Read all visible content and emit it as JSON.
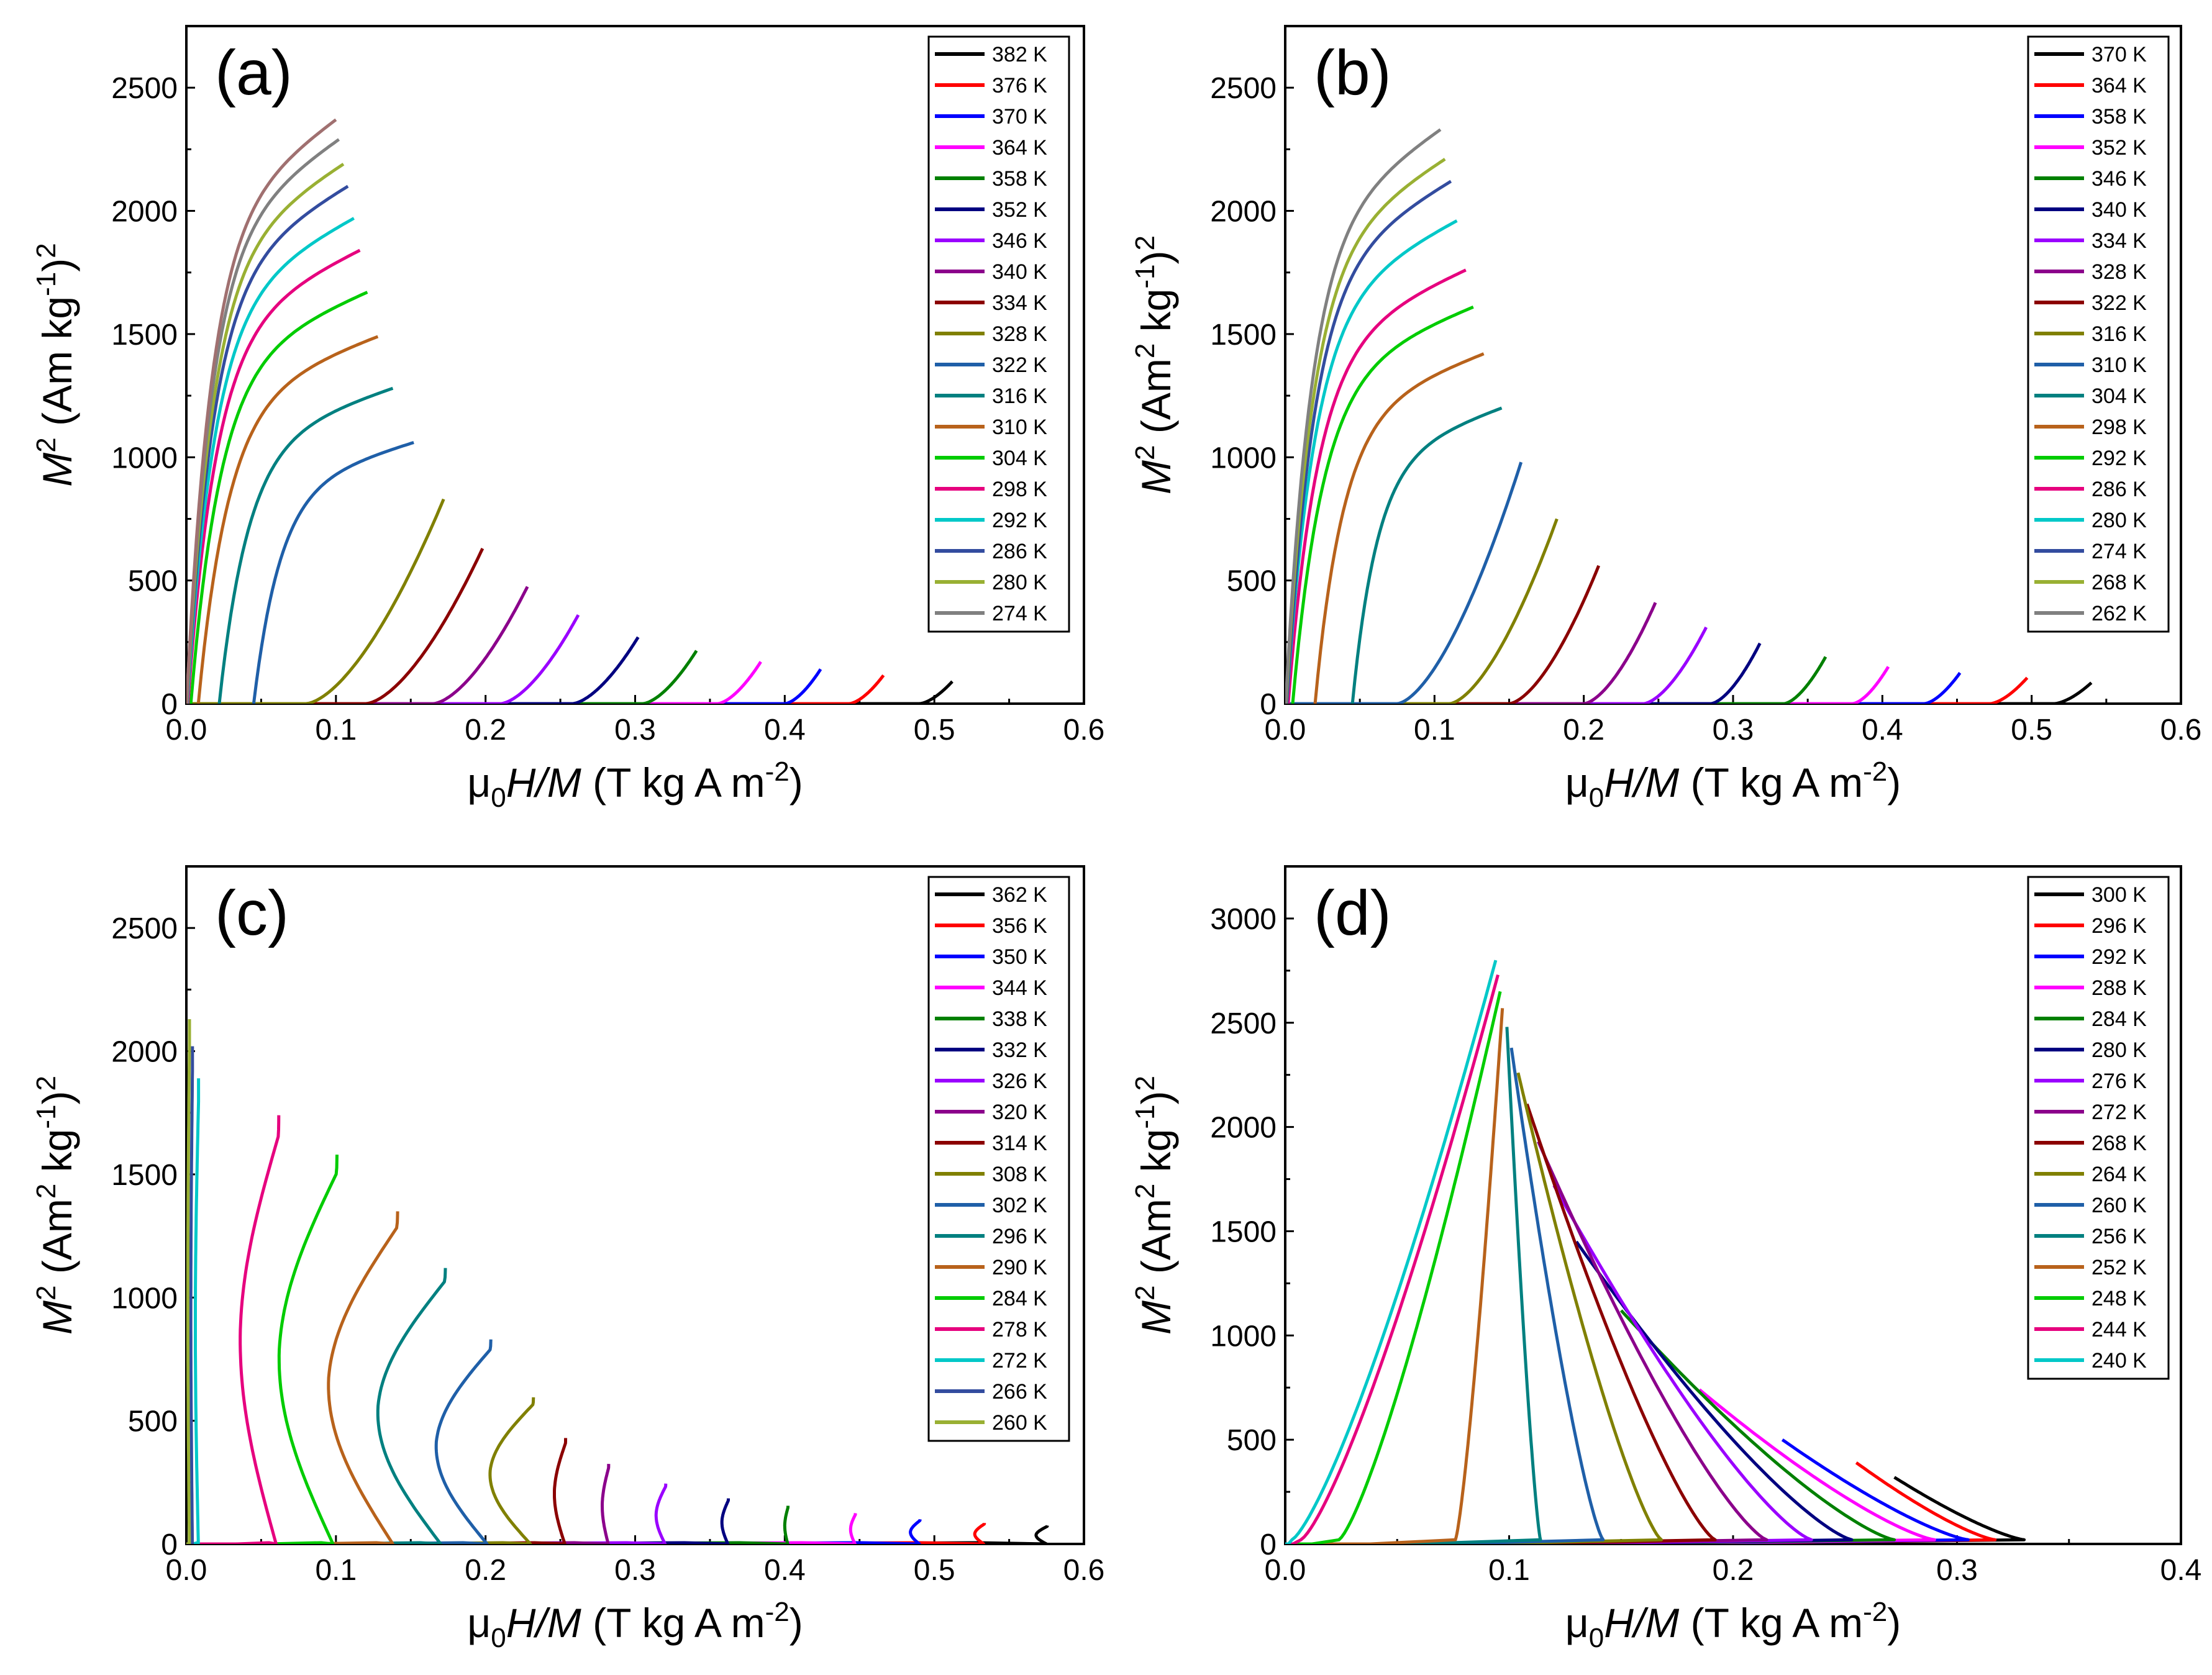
{
  "figure": {
    "colors": [
      "#000000",
      "#ff0000",
      "#0000ff",
      "#ff00ff",
      "#008000",
      "#000080",
      "#9a00ff",
      "#8b008b",
      "#8b0000",
      "#808000",
      "#1f5fa8",
      "#008080",
      "#b8621b",
      "#00cc00",
      "#e6007e",
      "#00c8c8",
      "#334c9f",
      "#99b033",
      "#808080"
    ]
  },
  "chart_data": [
    {
      "panel": "(a)",
      "type": "line",
      "xlabel": "μ₀H/M (T kg A m⁻²)",
      "ylabel": "M² (Am kg⁻¹)²",
      "xlim": [
        0,
        0.6
      ],
      "ylim": [
        0,
        2750
      ],
      "xticks": [
        "0.0",
        "0.1",
        "0.2",
        "0.3",
        "0.4",
        "0.5",
        "0.6"
      ],
      "yticks": [
        "0",
        "500",
        "1000",
        "1500",
        "2000",
        "2500"
      ],
      "series": [
        {
          "name": "382 K",
          "x0": 0.49,
          "x1": 0.512,
          "ytop": 90
        },
        {
          "name": "376 K",
          "x0": 0.443,
          "x1": 0.466,
          "ytop": 115
        },
        {
          "name": "370 K",
          "x0": 0.4,
          "x1": 0.424,
          "ytop": 140
        },
        {
          "name": "364 K",
          "x0": 0.355,
          "x1": 0.384,
          "ytop": 170
        },
        {
          "name": "358 K",
          "x0": 0.305,
          "x1": 0.341,
          "ytop": 215
        },
        {
          "name": "352 K",
          "x0": 0.258,
          "x1": 0.302,
          "ytop": 270
        },
        {
          "name": "346 K",
          "x0": 0.21,
          "x1": 0.262,
          "ytop": 360
        },
        {
          "name": "340 K",
          "x0": 0.165,
          "x1": 0.228,
          "ytop": 475
        },
        {
          "name": "334 K",
          "x0": 0.12,
          "x1": 0.198,
          "ytop": 630
        },
        {
          "name": "328 K",
          "x0": 0.08,
          "x1": 0.172,
          "ytop": 830
        },
        {
          "name": "322 K",
          "x0": 0.045,
          "x1": 0.152,
          "ytop": 1060
        },
        {
          "name": "316 K",
          "x0": 0.022,
          "x1": 0.138,
          "ytop": 1280
        },
        {
          "name": "310 K",
          "x0": 0.008,
          "x1": 0.128,
          "ytop": 1490
        },
        {
          "name": "304 K",
          "x0": 0.003,
          "x1": 0.121,
          "ytop": 1670
        },
        {
          "name": "298 K",
          "x0": 0.001,
          "x1": 0.116,
          "ytop": 1840
        },
        {
          "name": "292 K",
          "x0": 0.0005,
          "x1": 0.112,
          "ytop": 1970
        },
        {
          "name": "286 K",
          "x0": 0.0003,
          "x1": 0.108,
          "ytop": 2100
        },
        {
          "name": "280 K",
          "x0": 0.0002,
          "x1": 0.105,
          "ytop": 2190
        },
        {
          "name": "274 K",
          "x0": 0.0001,
          "x1": 0.102,
          "ytop": 2290
        },
        {
          "name": "",
          "x0": 0.0001,
          "x1": 0.1,
          "ytop": 2370
        }
      ]
    },
    {
      "panel": "(b)",
      "type": "line",
      "xlabel": "μ₀H/M (T kg A m⁻²)",
      "ylabel": "M² (Am² kg⁻¹)²",
      "xlim": [
        0,
        0.6
      ],
      "ylim": [
        0,
        2750
      ],
      "xticks": [
        "0.0",
        "0.1",
        "0.2",
        "0.3",
        "0.4",
        "0.5",
        "0.6"
      ],
      "yticks": [
        "0",
        "500",
        "1000",
        "1500",
        "2000",
        "2500"
      ],
      "series": [
        {
          "name": "370 K",
          "x0": 0.515,
          "x1": 0.54,
          "ytop": 85
        },
        {
          "name": "364 K",
          "x0": 0.472,
          "x1": 0.497,
          "ytop": 105
        },
        {
          "name": "358 K",
          "x0": 0.428,
          "x1": 0.452,
          "ytop": 125
        },
        {
          "name": "352 K",
          "x0": 0.38,
          "x1": 0.404,
          "ytop": 150
        },
        {
          "name": "346 K",
          "x0": 0.334,
          "x1": 0.362,
          "ytop": 190
        },
        {
          "name": "340 K",
          "x0": 0.285,
          "x1": 0.318,
          "ytop": 245
        },
        {
          "name": "334 K",
          "x0": 0.24,
          "x1": 0.282,
          "ytop": 310
        },
        {
          "name": "328 K",
          "x0": 0.2,
          "x1": 0.248,
          "ytop": 410
        },
        {
          "name": "322 K",
          "x0": 0.15,
          "x1": 0.21,
          "ytop": 560
        },
        {
          "name": "316 K",
          "x0": 0.11,
          "x1": 0.182,
          "ytop": 750
        },
        {
          "name": "310 K",
          "x0": 0.075,
          "x1": 0.158,
          "ytop": 980
        },
        {
          "name": "304 K",
          "x0": 0.045,
          "x1": 0.145,
          "ytop": 1200
        },
        {
          "name": "298 K",
          "x0": 0.02,
          "x1": 0.133,
          "ytop": 1420
        },
        {
          "name": "292 K",
          "x0": 0.005,
          "x1": 0.126,
          "ytop": 1610
        },
        {
          "name": "286 K",
          "x0": 0.002,
          "x1": 0.121,
          "ytop": 1760
        },
        {
          "name": "280 K",
          "x0": 0.001,
          "x1": 0.115,
          "ytop": 1960
        },
        {
          "name": "274 K",
          "x0": 0.001,
          "x1": 0.111,
          "ytop": 2120
        },
        {
          "name": "268 K",
          "x0": 0.0005,
          "x1": 0.107,
          "ytop": 2210
        },
        {
          "name": "262 K",
          "x0": 0.0003,
          "x1": 0.104,
          "ytop": 2330
        }
      ]
    },
    {
      "panel": "(c)",
      "type": "line",
      "xlabel": "μ₀H/M (T kg A m⁻²)",
      "ylabel": "M² (Am² kg⁻¹)²",
      "xlim": [
        0,
        0.6
      ],
      "ylim": [
        0,
        2750
      ],
      "xticks": [
        "0.0",
        "0.1",
        "0.2",
        "0.3",
        "0.4",
        "0.5",
        "0.6"
      ],
      "yticks": [
        "0",
        "500",
        "1000",
        "1500",
        "2000",
        "2500"
      ],
      "series": [
        {
          "name": "362 K",
          "xb": 0.575,
          "xm": 0.568,
          "ymid": 30,
          "ytop": 75
        },
        {
          "name": "356 K",
          "xb": 0.533,
          "xm": 0.527,
          "ymid": 35,
          "ytop": 85
        },
        {
          "name": "350 K",
          "xb": 0.49,
          "xm": 0.484,
          "ymid": 40,
          "ytop": 100
        },
        {
          "name": "344 K",
          "xb": 0.447,
          "xm": 0.444,
          "ymid": 60,
          "ytop": 125
        },
        {
          "name": "338 K",
          "xb": 0.402,
          "xm": 0.4,
          "ymid": 70,
          "ytop": 155
        },
        {
          "name": "332 K",
          "xb": 0.362,
          "xm": 0.358,
          "ymid": 80,
          "ytop": 185
        },
        {
          "name": "326 K",
          "xb": 0.32,
          "xm": 0.314,
          "ymid": 100,
          "ytop": 245
        },
        {
          "name": "320 K",
          "xb": 0.282,
          "xm": 0.278,
          "ymid": 110,
          "ytop": 325
        },
        {
          "name": "314 K",
          "xb": 0.253,
          "xm": 0.246,
          "ymid": 150,
          "ytop": 430
        },
        {
          "name": "308 K",
          "xb": 0.23,
          "xm": 0.203,
          "ymid": 220,
          "ytop": 595
        },
        {
          "name": "302 K",
          "xb": 0.201,
          "xm": 0.167,
          "ymid": 250,
          "ytop": 830
        },
        {
          "name": "296 K",
          "xb": 0.17,
          "xm": 0.128,
          "ymid": 300,
          "ytop": 1120
        },
        {
          "name": "290 K",
          "xb": 0.138,
          "xm": 0.095,
          "ymid": 400,
          "ytop": 1350
        },
        {
          "name": "284 K",
          "xb": 0.098,
          "xm": 0.062,
          "ymid": 500,
          "ytop": 1580
        },
        {
          "name": "278 K",
          "xb": 0.06,
          "xm": 0.036,
          "ymid": 600,
          "ytop": 1740
        },
        {
          "name": "272 K",
          "xb": 0.008,
          "xm": 0.006,
          "ymid": 800,
          "ytop": 1890
        },
        {
          "name": "266 K",
          "xb": 0.004,
          "xm": 0.003,
          "ymid": 900,
          "ytop": 2020
        },
        {
          "name": "260 K",
          "xb": 0.002,
          "xm": 0.001,
          "ymid": 1000,
          "ytop": 2130
        }
      ]
    },
    {
      "panel": "(d)",
      "type": "line",
      "xlabel": "μ₀H/M (T kg A m⁻²)",
      "ylabel": "M² (Am² kg⁻¹)²",
      "xlim": [
        0,
        0.4
      ],
      "ylim": [
        0,
        3250
      ],
      "xticks": [
        "0.0",
        "0.1",
        "0.2",
        "0.3",
        "0.4"
      ],
      "yticks": [
        "0",
        "500",
        "1000",
        "1500",
        "2000",
        "2500",
        "3000"
      ],
      "series": [
        {
          "name": "300 K",
          "xstart": 0.33,
          "xm": 0.327,
          "xtop": 0.272,
          "ytop": 320
        },
        {
          "name": "296 K",
          "xstart": 0.317,
          "xm": 0.312,
          "xtop": 0.255,
          "ytop": 390
        },
        {
          "name": "292 K",
          "xstart": 0.305,
          "xm": 0.298,
          "xtop": 0.222,
          "ytop": 500
        },
        {
          "name": "288 K",
          "xstart": 0.29,
          "xm": 0.278,
          "xtop": 0.185,
          "ytop": 740
        },
        {
          "name": "284 K",
          "xstart": 0.272,
          "xm": 0.258,
          "xtop": 0.15,
          "ytop": 1120
        },
        {
          "name": "280 K",
          "xstart": 0.253,
          "xm": 0.238,
          "xtop": 0.13,
          "ytop": 1450
        },
        {
          "name": "276 K",
          "xstart": 0.235,
          "xm": 0.218,
          "xtop": 0.12,
          "ytop": 1720
        },
        {
          "name": "272 K",
          "xstart": 0.215,
          "xm": 0.196,
          "xtop": 0.113,
          "ytop": 1930
        },
        {
          "name": "268 K",
          "xstart": 0.192,
          "xm": 0.176,
          "xtop": 0.108,
          "ytop": 2110
        },
        {
          "name": "264 K",
          "xstart": 0.168,
          "xm": 0.152,
          "xtop": 0.104,
          "ytop": 2260
        },
        {
          "name": "260 K",
          "xstart": 0.142,
          "xm": 0.125,
          "xtop": 0.101,
          "ytop": 2380
        },
        {
          "name": "256 K",
          "xstart": 0.114,
          "xm": 0.095,
          "xtop": 0.099,
          "ytop": 2480
        },
        {
          "name": "252 K",
          "xstart": 0.076,
          "xm": 0.058,
          "xtop": 0.097,
          "ytop": 2570
        },
        {
          "name": "248 K",
          "xstart": 0.024,
          "xm": 0.02,
          "xtop": 0.096,
          "ytop": 2650
        },
        {
          "name": "244 K",
          "xstart": 0.007,
          "xm": 0.004,
          "xtop": 0.095,
          "ytop": 2730
        },
        {
          "name": "240 K",
          "xstart": 0.003,
          "xm": 0.002,
          "xtop": 0.094,
          "ytop": 2800
        }
      ]
    }
  ]
}
